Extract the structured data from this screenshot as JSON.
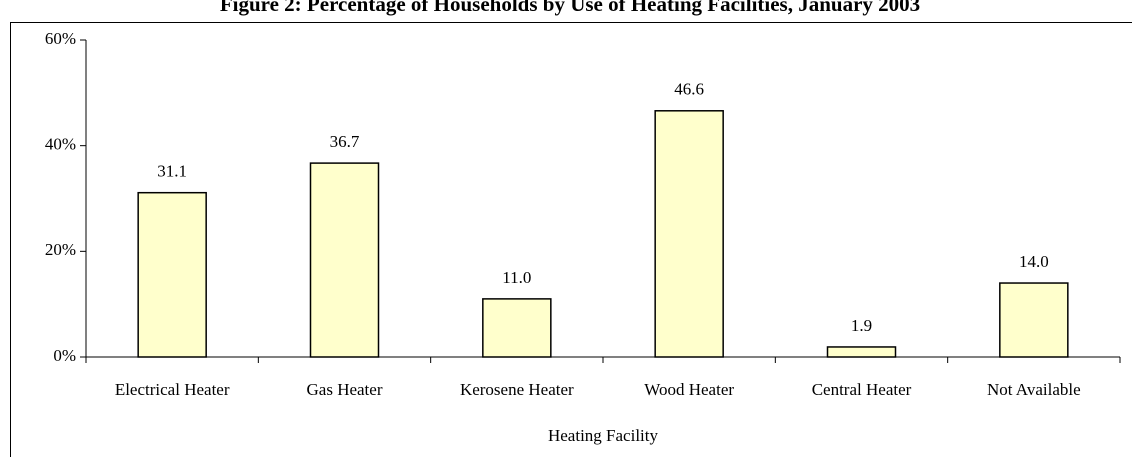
{
  "chart_data": {
    "type": "bar",
    "title": "Figure 2: Percentage of Households by Use of Heating Facilities, January 2003",
    "xlabel": "Heating Facility",
    "categories": [
      "Electrical Heater",
      "Gas Heater",
      "Kerosene Heater",
      "Wood Heater",
      "Central Heater",
      "Not Available"
    ],
    "values": [
      31.1,
      36.7,
      11.0,
      46.6,
      1.9,
      14.0
    ],
    "value_labels": [
      "31.1",
      "36.7",
      "11.0",
      "46.6",
      "1.9",
      "14.0"
    ],
    "color": "#ffffcc",
    "ylim": [
      0,
      60
    ],
    "yticks": [
      {
        "value": 0,
        "label": "0%"
      },
      {
        "value": 20,
        "label": "20%"
      },
      {
        "value": 40,
        "label": "40%"
      },
      {
        "value": 60,
        "label": "60%"
      }
    ],
    "grid": false
  }
}
